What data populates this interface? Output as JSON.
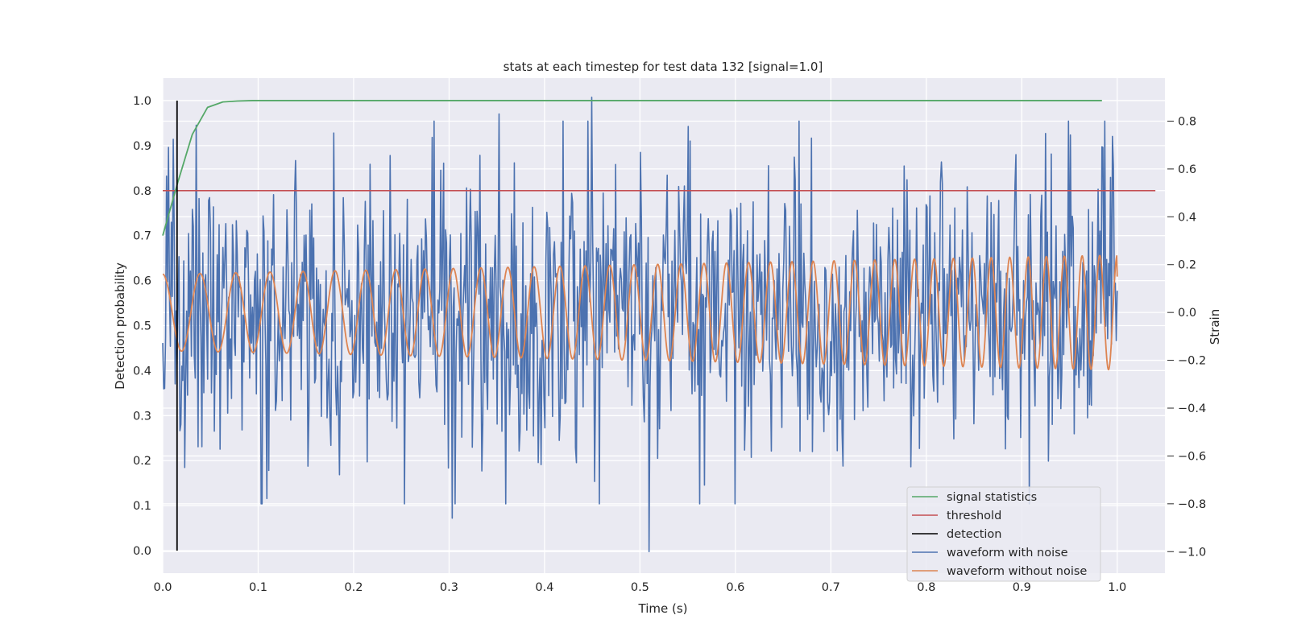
{
  "chart_data": {
    "type": "line",
    "title": "stats at each timestep for test data 132 [signal=1.0]",
    "xlabel": "Time (s)",
    "ylabel": "Detection probability",
    "ylabel_right": "Strain",
    "xlim": [
      0.0,
      1.05
    ],
    "ylim": [
      -0.05,
      1.05
    ],
    "ylim_right": [
      -1.09,
      0.98
    ],
    "xticks": [
      "0.0",
      "0.1",
      "0.2",
      "0.3",
      "0.4",
      "0.5",
      "0.6",
      "0.7",
      "0.8",
      "0.9",
      "1.0"
    ],
    "yticks": [
      "0.0",
      "0.1",
      "0.2",
      "0.3",
      "0.4",
      "0.5",
      "0.6",
      "0.7",
      "0.8",
      "0.9",
      "1.0"
    ],
    "yticks_right": [
      "−1.0",
      "−0.8",
      "−0.6",
      "−0.4",
      "−0.2",
      "0.0",
      "0.2",
      "0.4",
      "0.6",
      "0.8"
    ],
    "grid": true,
    "legend_position": "lower-right",
    "series": [
      {
        "name": "signal statistics",
        "axis": "left",
        "color": "#55a868",
        "x": [
          0.0,
          0.016,
          0.031,
          0.047,
          0.063,
          0.078,
          0.094,
          0.125,
          0.2,
          0.4,
          0.6,
          0.8,
          0.984
        ],
        "y": [
          0.7,
          0.82,
          0.925,
          0.985,
          0.997,
          0.999,
          1.0,
          1.0,
          1.0,
          1.0,
          1.0,
          1.0,
          1.0
        ]
      },
      {
        "name": "threshold",
        "axis": "left",
        "color": "#c44e52",
        "x": [
          0.0,
          1.04
        ],
        "y": [
          0.8,
          0.8
        ]
      },
      {
        "name": "detection",
        "axis": "left",
        "color": "#000000",
        "x": [
          0.015,
          0.015
        ],
        "y": [
          0.0,
          1.0
        ]
      },
      {
        "name": "waveform with noise",
        "axis": "right",
        "color": "#4c72b0",
        "t_start": 0.0,
        "t_end": 1.0,
        "amplitude_std": 0.3,
        "clip": [
          -0.8,
          0.8
        ],
        "peaks": [
          {
            "x": 0.449,
            "y": 0.9
          },
          {
            "x": 0.51,
            "y": -1.0
          },
          {
            "x": 0.352,
            "y": 0.83
          },
          {
            "x": 0.303,
            "y": -0.86
          },
          {
            "x": 0.004,
            "y": 0.57
          },
          {
            "x": 0.985,
            "y": 0.69
          }
        ]
      },
      {
        "name": "waveform without noise",
        "axis": "right",
        "color": "#dd8452",
        "t_start": 0.0,
        "t_end": 1.0,
        "f0": 25,
        "f1": 55,
        "amp0": 0.16,
        "amp1": 0.24,
        "end_value": 0.15
      }
    ]
  }
}
